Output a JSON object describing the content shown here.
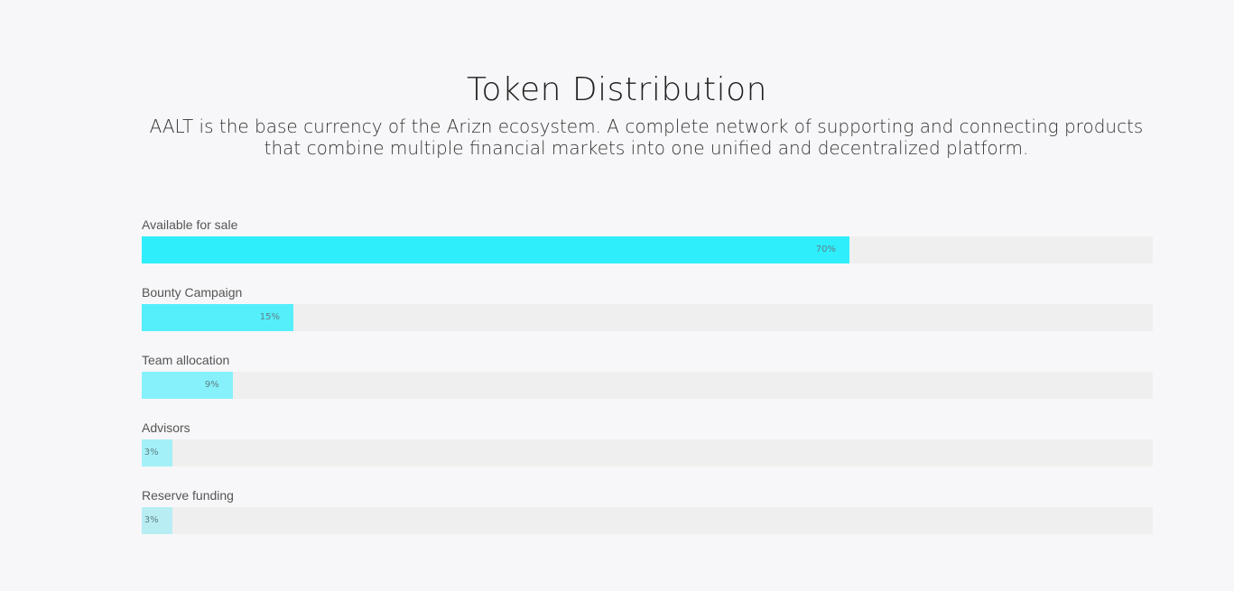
{
  "header": {
    "title": "Token Distribution",
    "subtitle_line1": "AALT is the base currency of the Arizn ecosystem. A complete network of supporting and connecting products",
    "subtitle_line2": "that combine multiple financial markets into one unified and decentralized platform."
  },
  "distribution": [
    {
      "label": "Available for sale",
      "percent": 70,
      "percent_label": "70%",
      "color": "#2eeefc"
    },
    {
      "label": "Bounty Campaign",
      "percent": 15,
      "percent_label": "15%",
      "color": "#55effb"
    },
    {
      "label": "Team allocation",
      "percent": 9,
      "percent_label": "9%",
      "color": "#86f1fb"
    },
    {
      "label": "Advisors",
      "percent": 3,
      "percent_label": "3%",
      "color": "#a4f0f8"
    },
    {
      "label": "Reserve funding",
      "percent": 3,
      "percent_label": "3%",
      "color": "#b8eef3"
    }
  ]
}
